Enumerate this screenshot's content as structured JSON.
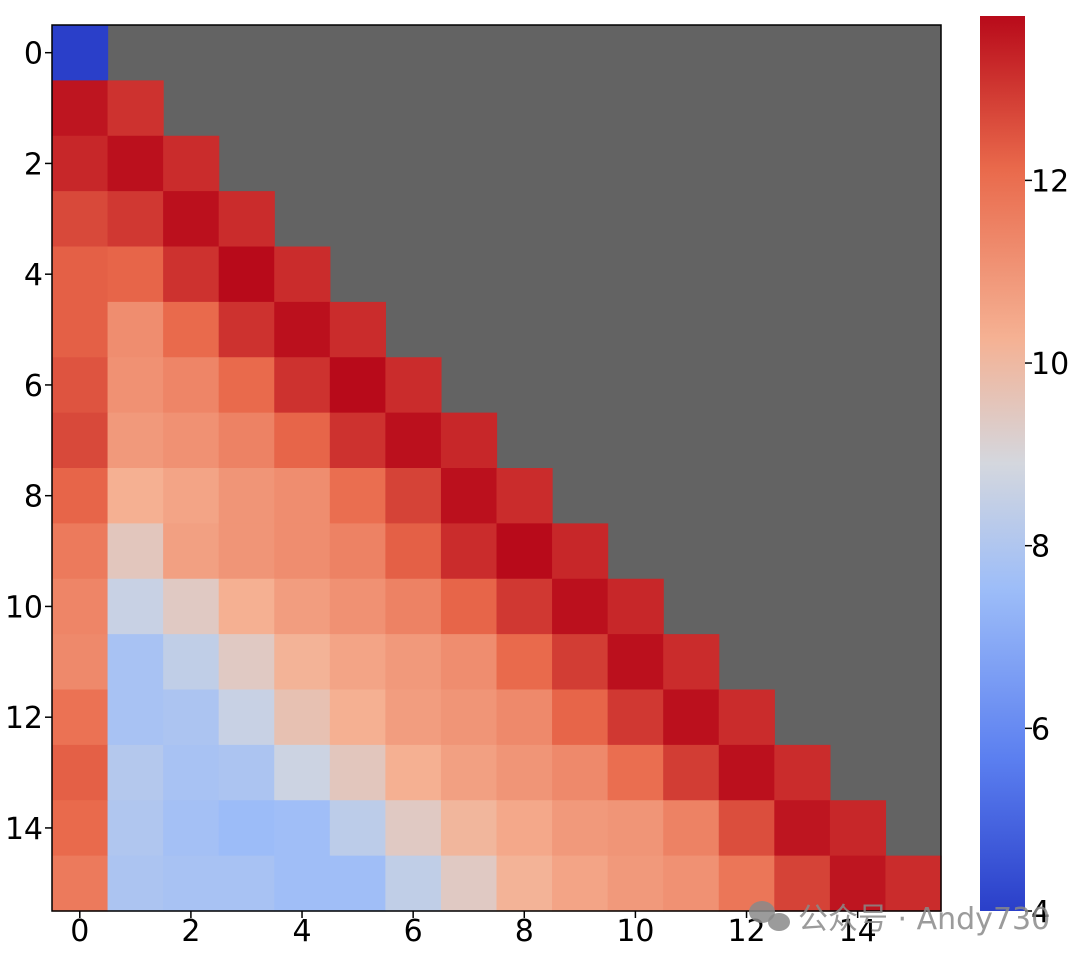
{
  "colors": {
    "masked": "#636363",
    "cmap": "coolwarm",
    "stops": [
      "#2a3fc9",
      "#5b7ff0",
      "#9dbdf8",
      "#d4d7de",
      "#f5b193",
      "#e9694b",
      "#b80a1a"
    ]
  },
  "chart_data": {
    "type": "heatmap",
    "title": "",
    "xlabel": "",
    "ylabel": "",
    "x_ticks": [
      "0",
      "2",
      "4",
      "6",
      "8",
      "10",
      "12",
      "14"
    ],
    "y_ticks": [
      "0",
      "2",
      "4",
      "6",
      "8",
      "10",
      "12",
      "14"
    ],
    "colorbar": {
      "range": [
        4,
        13.8
      ],
      "ticks": [
        "4",
        "6",
        "8",
        "10",
        "12"
      ],
      "placement": "right"
    },
    "masked": "upper-triangle",
    "grid": false,
    "values": [
      [
        3.9
      ],
      [
        13.6,
        13.1
      ],
      [
        13.3,
        13.7,
        13.2
      ],
      [
        12.7,
        13.0,
        13.7,
        13.2
      ],
      [
        12.3,
        12.2,
        13.1,
        13.8,
        13.2
      ],
      [
        12.3,
        11.2,
        12.1,
        13.1,
        13.7,
        13.2
      ],
      [
        12.5,
        11.1,
        11.4,
        12.1,
        13.1,
        13.8,
        13.2
      ],
      [
        12.7,
        10.9,
        11.1,
        11.5,
        12.2,
        13.1,
        13.7,
        13.3
      ],
      [
        12.2,
        10.3,
        10.6,
        11.0,
        11.2,
        12.0,
        12.8,
        13.7,
        13.2
      ],
      [
        11.7,
        9.5,
        10.7,
        11.0,
        11.2,
        11.5,
        12.3,
        13.2,
        13.8,
        13.3
      ],
      [
        11.4,
        8.6,
        9.4,
        10.3,
        10.8,
        11.1,
        11.5,
        12.2,
        13.0,
        13.7,
        13.3
      ],
      [
        11.3,
        7.8,
        8.4,
        9.4,
        10.2,
        10.6,
        10.9,
        11.2,
        12.1,
        12.9,
        13.7,
        13.2
      ],
      [
        11.9,
        7.8,
        7.9,
        8.6,
        9.7,
        10.3,
        10.8,
        11.0,
        11.3,
        12.2,
        13.0,
        13.7,
        13.2
      ],
      [
        12.3,
        8.1,
        7.8,
        7.9,
        8.7,
        9.5,
        10.3,
        10.7,
        11.0,
        11.3,
        12.0,
        12.9,
        13.7,
        13.2
      ],
      [
        12.1,
        8.0,
        7.7,
        7.5,
        7.6,
        8.3,
        9.4,
        10.1,
        10.5,
        10.9,
        11.0,
        11.5,
        12.6,
        13.6,
        13.3
      ],
      [
        11.7,
        7.9,
        7.8,
        7.8,
        7.6,
        7.6,
        8.4,
        9.4,
        10.2,
        10.6,
        10.9,
        11.1,
        11.8,
        12.8,
        13.6,
        13.2
      ]
    ]
  },
  "watermark": {
    "text": "公众号 · Andy730"
  }
}
